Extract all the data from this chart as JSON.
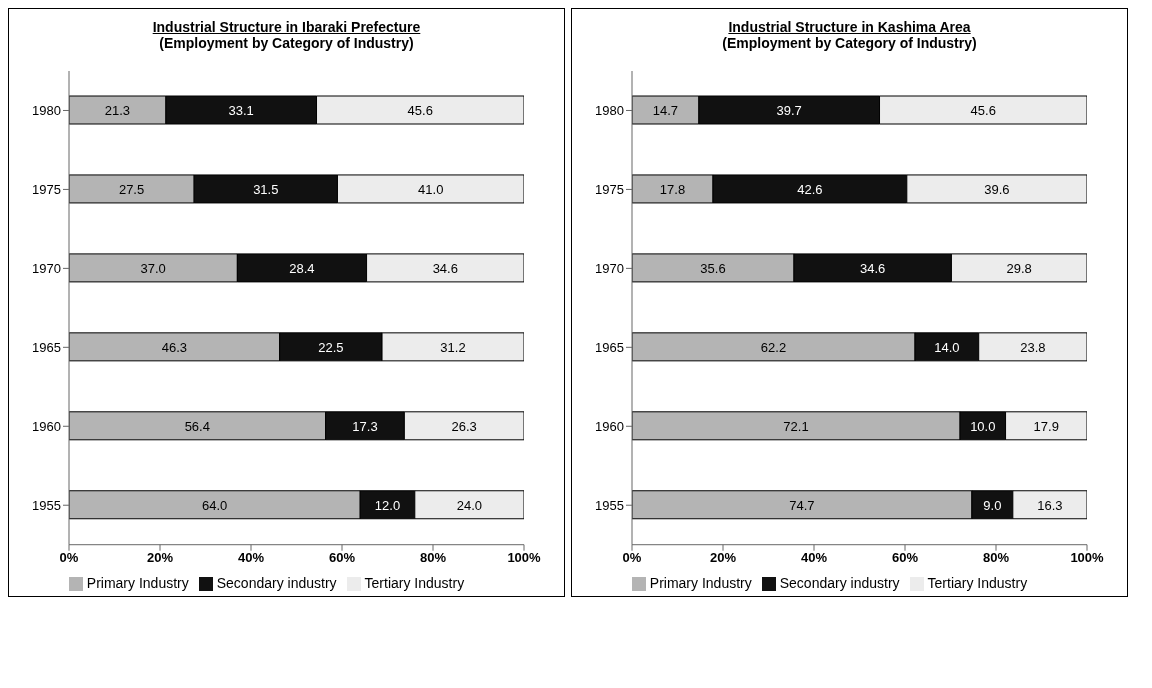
{
  "chart_data": [
    {
      "type": "bar",
      "orientation": "horizontal",
      "stacked": true,
      "title": "Industrial Structure in Ibaraki Prefecture",
      "subtitle": "(Employment by Category of Industry)",
      "categories": [
        "1980",
        "1975",
        "1970",
        "1965",
        "1960",
        "1955"
      ],
      "series": [
        {
          "name": "Primary Industry",
          "color": "#b4b4b4",
          "values": [
            21.3,
            27.5,
            37.0,
            46.3,
            56.4,
            64.0
          ],
          "value_labels": [
            "21.3",
            "27.5",
            "37.0",
            "46.3",
            "56.4",
            "64.0"
          ]
        },
        {
          "name": "Secondary industry",
          "color": "#111111",
          "values": [
            33.1,
            31.5,
            28.4,
            22.5,
            17.3,
            12.0
          ],
          "value_labels": [
            "33.1",
            "31.5",
            "28.4",
            "22.5",
            "17.3",
            "12.0"
          ]
        },
        {
          "name": "Tertiary Industry",
          "color": "#ececec",
          "values": [
            45.6,
            41.0,
            34.6,
            31.2,
            26.3,
            24.0
          ],
          "value_labels": [
            "45.6",
            "41.0",
            "34.6",
            "31.2",
            "26.3",
            "24.0"
          ]
        }
      ],
      "xlim": [
        0,
        100
      ],
      "xticks": [
        {
          "value": 0,
          "label": "0%"
        },
        {
          "value": 20,
          "label": "20%"
        },
        {
          "value": 40,
          "label": "40%"
        },
        {
          "value": 60,
          "label": "60%"
        },
        {
          "value": 80,
          "label": "80%"
        },
        {
          "value": 100,
          "label": "100%"
        }
      ],
      "legend": "bottom"
    },
    {
      "type": "bar",
      "orientation": "horizontal",
      "stacked": true,
      "title": "Industrial Structure in Kashima Area",
      "subtitle": "(Employment by Category of Industry)",
      "categories": [
        "1980",
        "1975",
        "1970",
        "1965",
        "1960",
        "1955"
      ],
      "series": [
        {
          "name": "Primary Industry",
          "color": "#b4b4b4",
          "values": [
            14.7,
            17.8,
            35.6,
            62.2,
            72.1,
            74.7
          ],
          "value_labels": [
            "14.7",
            "17.8",
            "35.6",
            "62.2",
            "72.1",
            "74.7"
          ]
        },
        {
          "name": "Secondary industry",
          "color": "#111111",
          "values": [
            39.7,
            42.6,
            34.6,
            14.0,
            10.0,
            9.0
          ],
          "value_labels": [
            "39.7",
            "42.6",
            "34.6",
            "14.0",
            "10.0",
            "9.0"
          ]
        },
        {
          "name": "Tertiary Industry",
          "color": "#ececec",
          "values": [
            45.6,
            39.6,
            29.8,
            23.8,
            17.9,
            16.3
          ],
          "value_labels": [
            "45.6",
            "39.6",
            "29.8",
            "23.8",
            "17.9",
            "16.3"
          ]
        }
      ],
      "xlim": [
        0,
        100
      ],
      "xticks": [
        {
          "value": 0,
          "label": "0%"
        },
        {
          "value": 20,
          "label": "20%"
        },
        {
          "value": 40,
          "label": "40%"
        },
        {
          "value": 60,
          "label": "60%"
        },
        {
          "value": 80,
          "label": "80%"
        },
        {
          "value": 100,
          "label": "100%"
        }
      ],
      "legend": "bottom"
    }
  ]
}
